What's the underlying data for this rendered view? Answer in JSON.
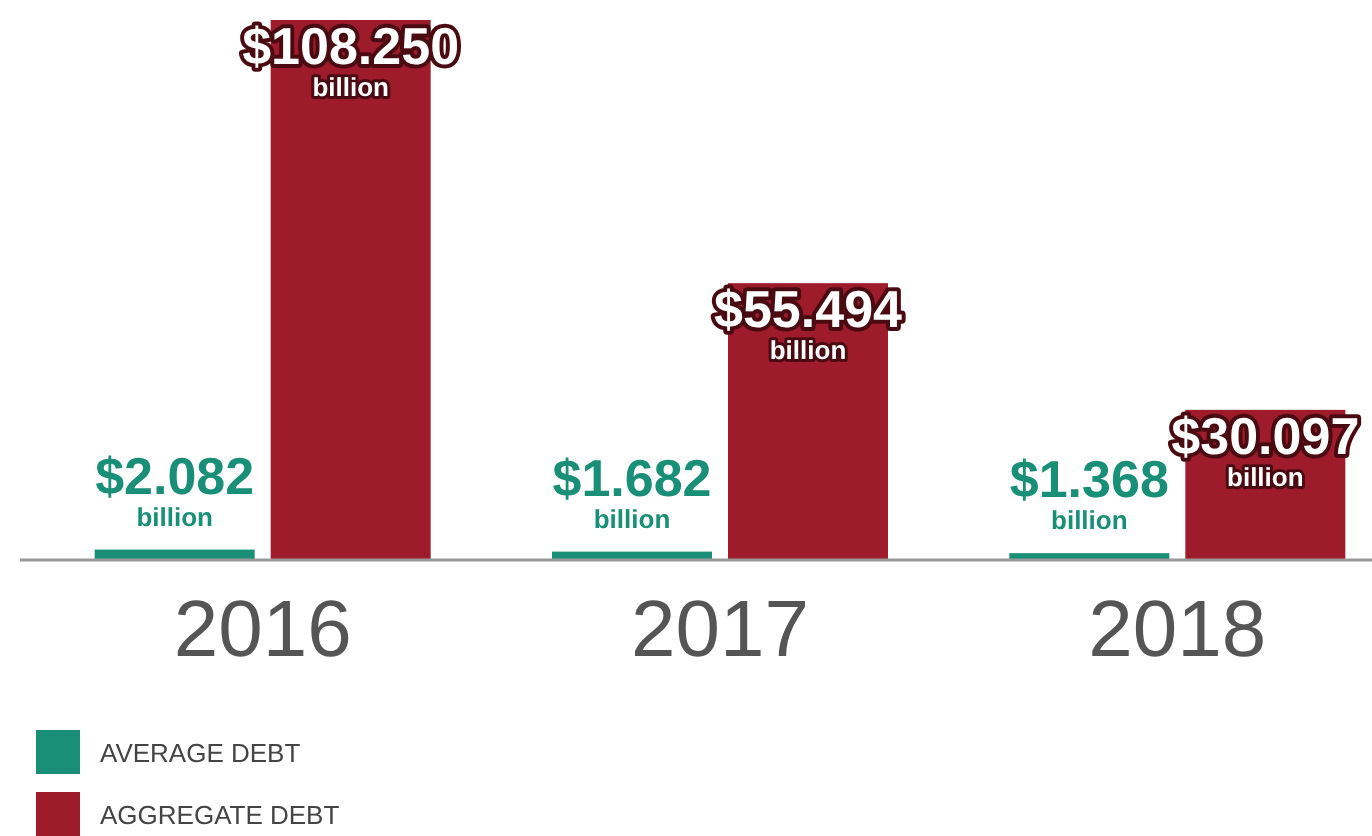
{
  "chart_data": {
    "type": "bar",
    "categories": [
      "2016",
      "2017",
      "2018"
    ],
    "series": [
      {
        "name": "AVERAGE DEBT",
        "color": "#1a8f78",
        "values": [
          2.082,
          1.682,
          1.368
        ],
        "value_labels": [
          "$2.082 billion",
          "$1.682 billion",
          "$1.368 billion"
        ]
      },
      {
        "name": "AGGREGATE DEBT",
        "color": "#9e1b2b",
        "values": [
          108.25,
          55.494,
          30.097
        ],
        "value_labels": [
          "$108.250 billion",
          "$55.494 billion",
          "$30.097 billion"
        ]
      }
    ],
    "legend": "bottom left"
  }
}
